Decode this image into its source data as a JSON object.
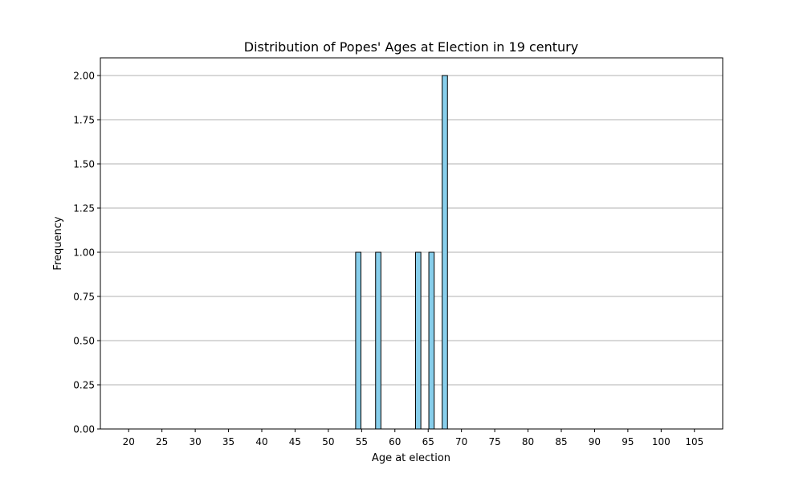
{
  "chart_data": {
    "type": "bar",
    "title": "Distribution of Popes' Ages at Election in 19 century",
    "xlabel": "Age at election",
    "ylabel": "Frequency",
    "xlim": [
      15.75,
      109.25
    ],
    "ylim": [
      0,
      2.1
    ],
    "xticks": [
      20,
      25,
      30,
      35,
      40,
      45,
      50,
      55,
      60,
      65,
      70,
      75,
      80,
      85,
      90,
      95,
      100,
      105
    ],
    "yticks": [
      "0.00",
      "0.25",
      "0.50",
      "0.75",
      "1.00",
      "1.25",
      "1.50",
      "1.75",
      "2.00"
    ],
    "bin_width": 1,
    "bar_width": 0.8,
    "bins": [
      {
        "start": 54,
        "end": 55,
        "count": 1
      },
      {
        "start": 57,
        "end": 58,
        "count": 1
      },
      {
        "start": 63,
        "end": 64,
        "count": 1
      },
      {
        "start": 65,
        "end": 66,
        "count": 1
      },
      {
        "start": 67,
        "end": 68,
        "count": 2
      }
    ],
    "baseline_start": 18,
    "baseline_end": 104,
    "grid": "y",
    "colors": {
      "bar_fill": "#87ceeb",
      "bar_edge": "#000000",
      "grid": "#b0b0b0",
      "axes": "#000000"
    }
  }
}
